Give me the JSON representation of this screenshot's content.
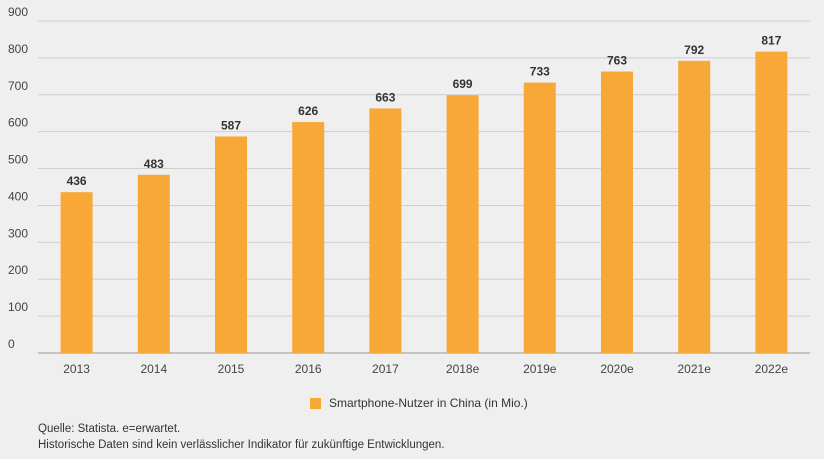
{
  "chart_data": {
    "type": "bar",
    "categories": [
      "2013",
      "2014",
      "2015",
      "2016",
      "2017",
      "2018e",
      "2019e",
      "2020e",
      "2021e",
      "2022e"
    ],
    "series": [
      {
        "name": "Smartphone-Nutzer in China (in Mio.)",
        "values": [
          436,
          483,
          587,
          626,
          663,
          699,
          733,
          763,
          792,
          817
        ]
      }
    ],
    "ylim": [
      0,
      900
    ],
    "yticks": [
      0,
      100,
      200,
      300,
      400,
      500,
      600,
      700,
      800,
      900
    ],
    "grid": true,
    "legend": "bottom-center",
    "bar_color": "#f7a836",
    "data_labels": true
  },
  "legend": {
    "label": "Smartphone-Nutzer in China (in Mio.)",
    "color": "#f7a836"
  },
  "notes": {
    "source": "Quelle: Statista. e=erwartet.",
    "disclaimer": "Historische Daten sind kein verlässlicher Indikator für zukünftige Entwicklungen."
  }
}
